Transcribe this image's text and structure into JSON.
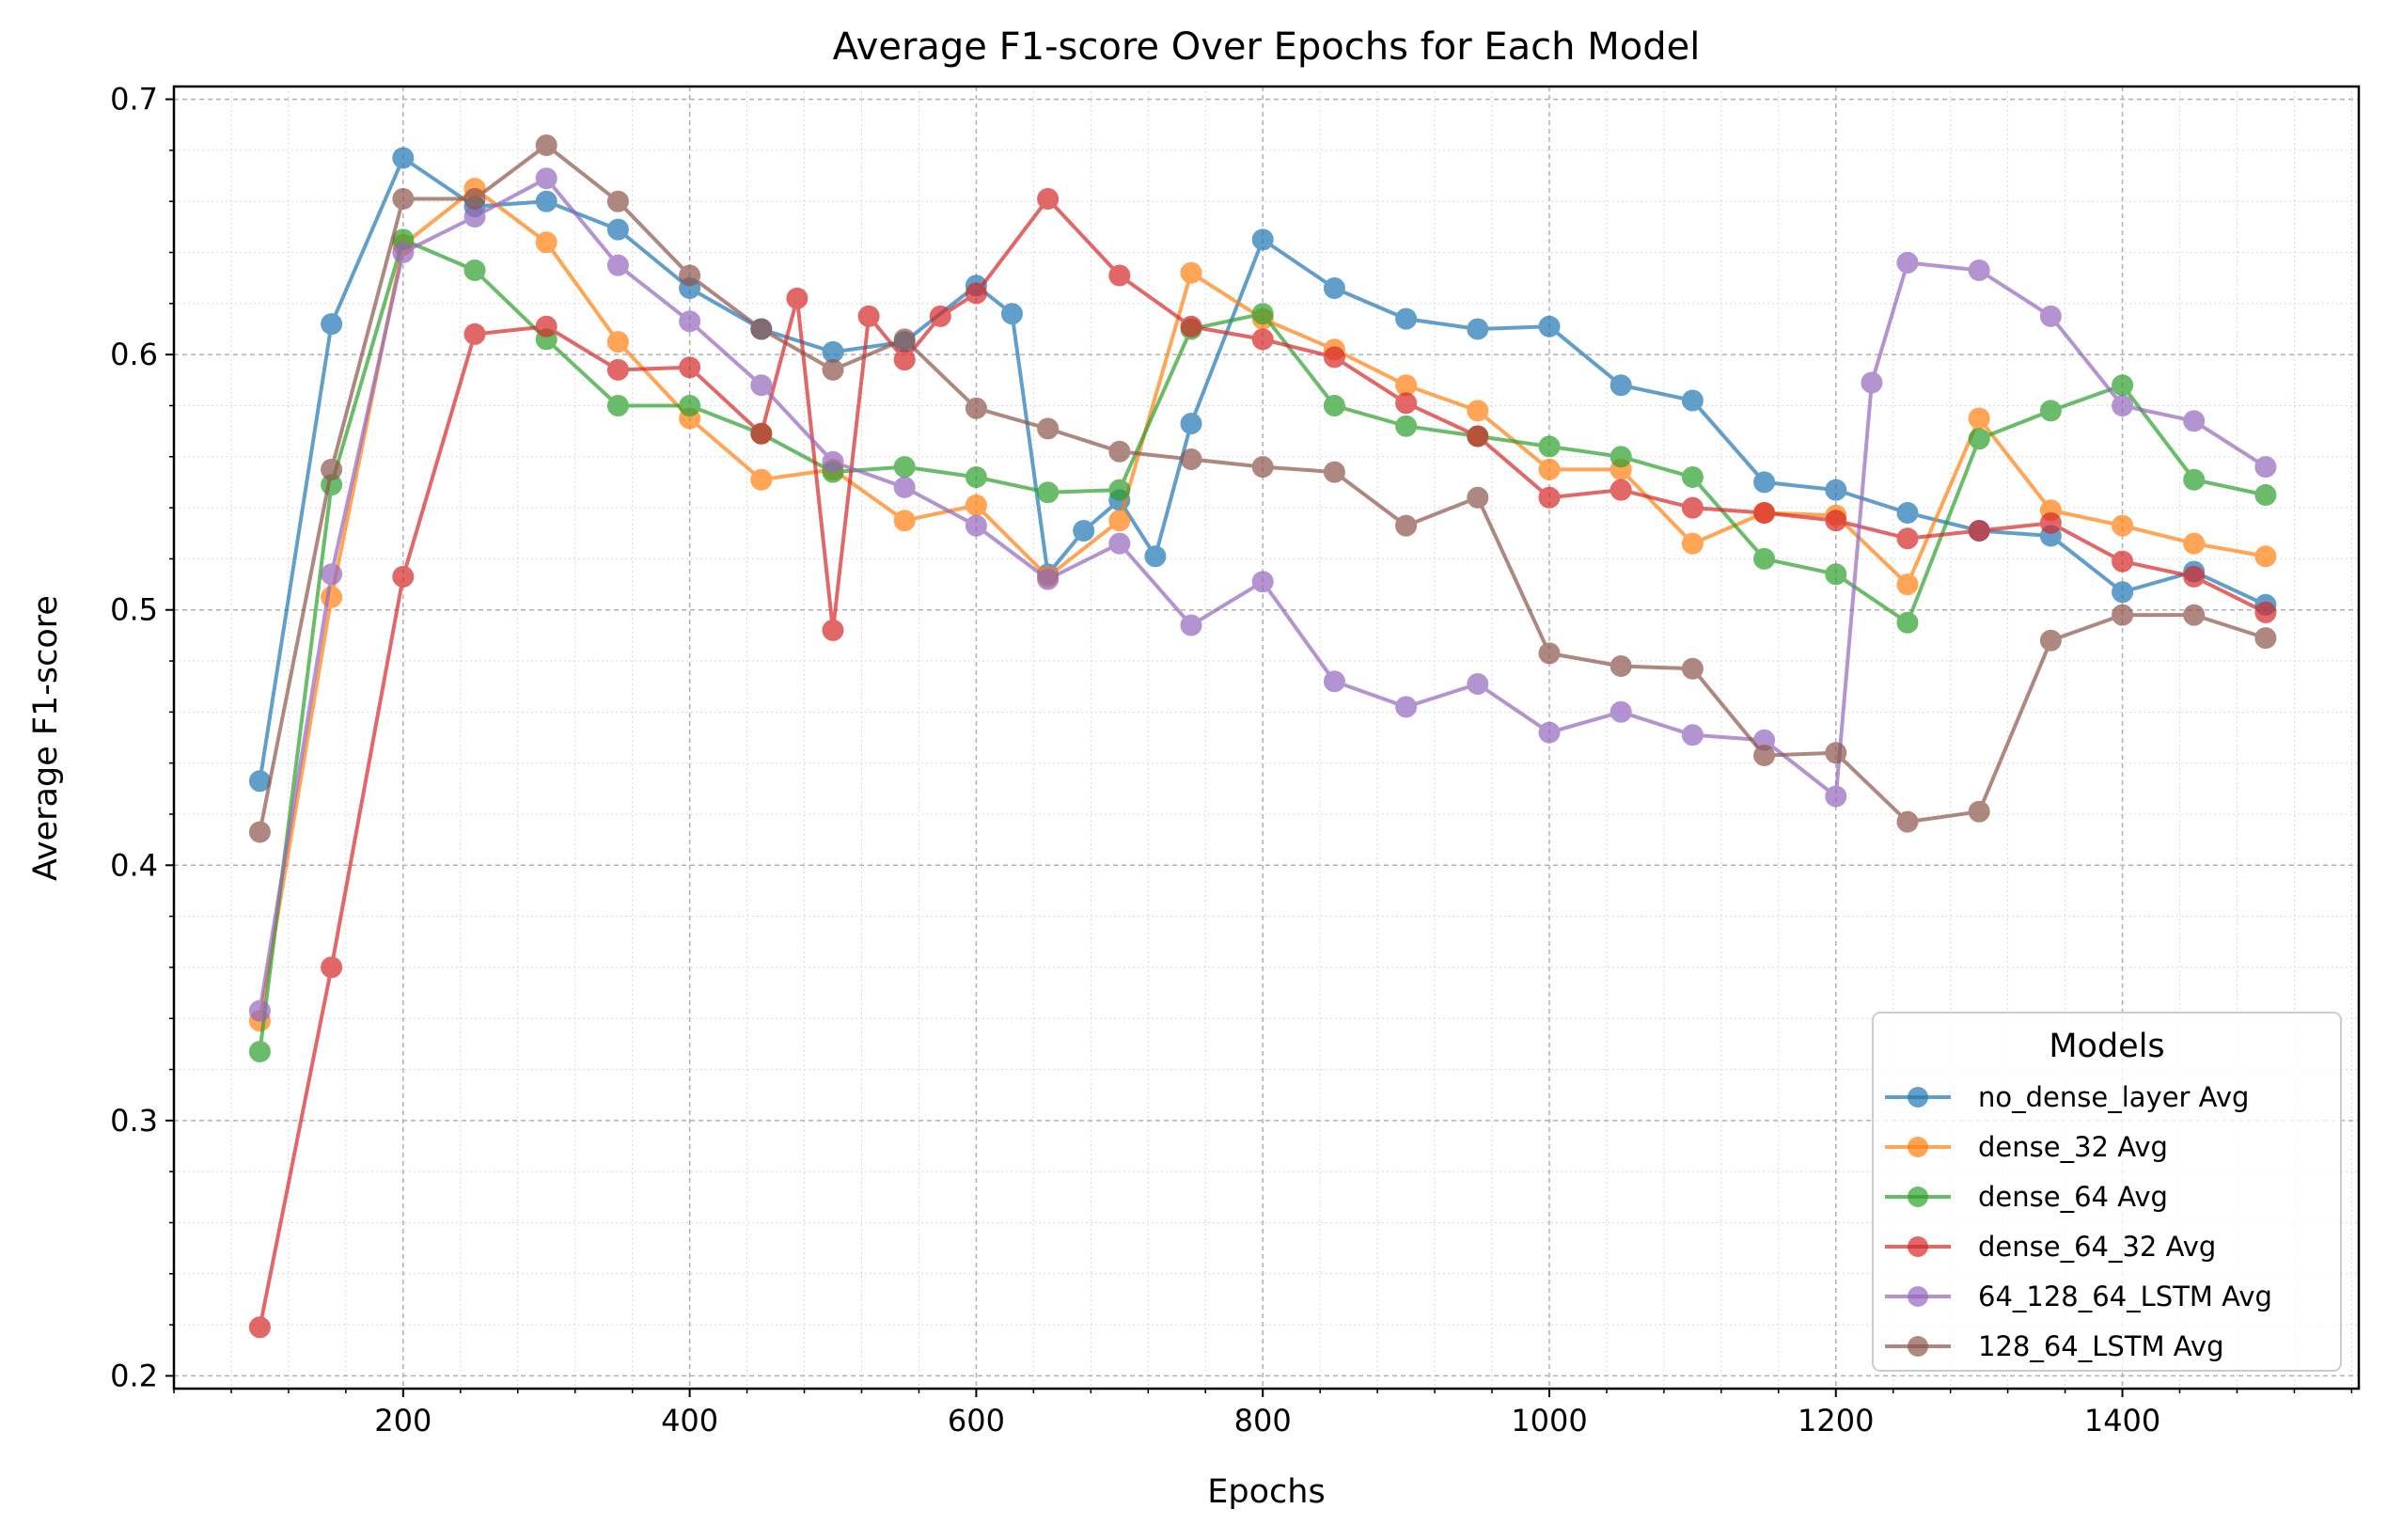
{
  "chart_data": {
    "type": "line",
    "title": "Average F1-score Over Epochs for Each Model",
    "xlabel": "Epochs",
    "ylabel": "Average F1-score",
    "xlim": [
      40,
      1565
    ],
    "ylim": [
      0.195,
      0.705
    ],
    "xticks": [
      200,
      400,
      600,
      800,
      1000,
      1200,
      1400
    ],
    "xtick_labels": [
      "200",
      "400",
      "600",
      "800",
      "1000",
      "1200",
      "1400"
    ],
    "yticks": [
      0.2,
      0.3,
      0.4,
      0.5,
      0.6,
      0.7
    ],
    "ytick_labels": [
      "0.2",
      "0.3",
      "0.4",
      "0.5",
      "0.6",
      "0.7"
    ],
    "grid": true,
    "legend": {
      "title": "Models",
      "placement": "lower-right"
    },
    "series": [
      {
        "name": "no_dense_layer Avg",
        "color": "#1f77b4",
        "x": [
          100,
          150,
          200,
          250,
          300,
          350,
          400,
          450,
          500,
          550,
          600,
          625,
          650,
          675,
          700,
          725,
          750,
          800,
          850,
          900,
          950,
          1000,
          1050,
          1100,
          1150,
          1200,
          1250,
          1300,
          1350,
          1400,
          1450,
          1500
        ],
        "y": [
          0.433,
          0.612,
          0.677,
          0.658,
          0.66,
          0.649,
          0.626,
          0.61,
          0.601,
          0.605,
          0.627,
          0.616,
          0.514,
          0.531,
          0.543,
          0.521,
          0.573,
          0.645,
          0.626,
          0.614,
          0.61,
          0.611,
          0.588,
          0.582,
          0.55,
          0.547,
          0.538,
          0.531,
          0.529,
          0.507,
          0.515,
          0.502
        ]
      },
      {
        "name": "dense_32 Avg",
        "color": "#ff7f0e",
        "x": [
          100,
          150,
          200,
          250,
          300,
          350,
          400,
          450,
          500,
          550,
          600,
          650,
          700,
          750,
          800,
          850,
          900,
          950,
          1000,
          1050,
          1100,
          1150,
          1200,
          1250,
          1300,
          1350,
          1400,
          1450,
          1500
        ],
        "y": [
          0.339,
          0.505,
          0.643,
          0.665,
          0.644,
          0.605,
          0.575,
          0.551,
          0.555,
          0.535,
          0.541,
          0.513,
          0.535,
          0.632,
          0.614,
          0.602,
          0.588,
          0.578,
          0.555,
          0.555,
          0.526,
          0.538,
          0.537,
          0.51,
          0.575,
          0.539,
          0.533,
          0.526,
          0.521
        ]
      },
      {
        "name": "dense_64 Avg",
        "color": "#2ca02c",
        "x": [
          100,
          150,
          200,
          250,
          300,
          350,
          400,
          450,
          500,
          550,
          600,
          650,
          700,
          750,
          800,
          850,
          900,
          950,
          1000,
          1050,
          1100,
          1150,
          1200,
          1250,
          1300,
          1350,
          1400,
          1450,
          1500
        ],
        "y": [
          0.327,
          0.549,
          0.645,
          0.633,
          0.606,
          0.58,
          0.58,
          0.569,
          0.554,
          0.556,
          0.552,
          0.546,
          0.547,
          0.61,
          0.616,
          0.58,
          0.572,
          0.568,
          0.564,
          0.56,
          0.552,
          0.52,
          0.514,
          0.495,
          0.567,
          0.578,
          0.588,
          0.551,
          0.545
        ]
      },
      {
        "name": "dense_64_32 Avg",
        "color": "#d62728",
        "x": [
          100,
          150,
          200,
          250,
          300,
          350,
          400,
          450,
          475,
          500,
          525,
          550,
          575,
          600,
          650,
          700,
          750,
          800,
          850,
          900,
          950,
          1000,
          1050,
          1100,
          1150,
          1200,
          1250,
          1300,
          1350,
          1400,
          1450,
          1500
        ],
        "y": [
          0.219,
          0.36,
          0.513,
          0.608,
          0.611,
          0.594,
          0.595,
          0.569,
          0.622,
          0.492,
          0.615,
          0.598,
          0.615,
          0.624,
          0.661,
          0.631,
          0.611,
          0.606,
          0.599,
          0.581,
          0.568,
          0.544,
          0.547,
          0.54,
          0.538,
          0.535,
          0.528,
          0.531,
          0.534,
          0.519,
          0.513,
          0.499
        ]
      },
      {
        "name": "64_128_64_LSTM Avg",
        "color": "#9467bd",
        "x": [
          100,
          150,
          200,
          250,
          300,
          350,
          400,
          450,
          500,
          550,
          600,
          650,
          700,
          750,
          800,
          850,
          900,
          950,
          1000,
          1050,
          1100,
          1150,
          1200,
          1225,
          1250,
          1300,
          1350,
          1400,
          1450,
          1500
        ],
        "y": [
          0.343,
          0.514,
          0.64,
          0.654,
          0.669,
          0.635,
          0.613,
          0.588,
          0.558,
          0.548,
          0.533,
          0.512,
          0.526,
          0.494,
          0.511,
          0.472,
          0.462,
          0.471,
          0.452,
          0.46,
          0.451,
          0.449,
          0.427,
          0.589,
          0.636,
          0.633,
          0.615,
          0.58,
          0.574,
          0.556
        ]
      },
      {
        "name": "128_64_LSTM Avg",
        "color": "#8c564b",
        "x": [
          100,
          150,
          200,
          250,
          300,
          350,
          400,
          450,
          500,
          550,
          600,
          650,
          700,
          750,
          800,
          850,
          900,
          950,
          1000,
          1050,
          1100,
          1150,
          1200,
          1250,
          1300,
          1350,
          1400,
          1450,
          1500
        ],
        "y": [
          0.413,
          0.555,
          0.661,
          0.661,
          0.682,
          0.66,
          0.631,
          0.61,
          0.594,
          0.606,
          0.579,
          0.571,
          0.562,
          0.559,
          0.556,
          0.554,
          0.533,
          0.544,
          0.483,
          0.478,
          0.477,
          0.443,
          0.444,
          0.417,
          0.421,
          0.488,
          0.498,
          0.498,
          0.489
        ]
      }
    ]
  }
}
